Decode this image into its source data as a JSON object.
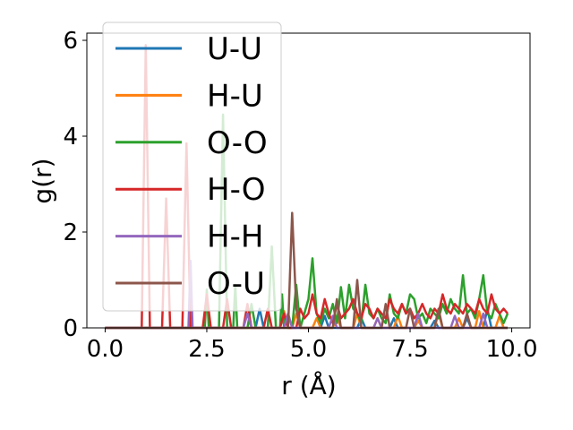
{
  "chart_data": {
    "type": "line",
    "title": "",
    "xlabel": "r (Å)",
    "ylabel": "g(r)",
    "xlim": [
      -0.45,
      10.45
    ],
    "ylim": [
      0,
      6.15
    ],
    "xticks": [
      "0.0",
      "2.5",
      "5.0",
      "7.5",
      "10.0"
    ],
    "xtick_values": [
      0,
      2.5,
      5,
      7.5,
      10
    ],
    "yticks": [
      "0",
      "2",
      "4",
      "6"
    ],
    "ytick_values": [
      0,
      2,
      4,
      6
    ],
    "legend_position": "upper-left",
    "grid": false,
    "series": [
      {
        "name": "U-U",
        "color": "#1f77b4",
        "x": [
          0,
          3.7,
          3.8,
          3.9,
          4.3,
          4.4,
          4.5,
          5.3,
          5.4,
          5.5,
          6.2,
          6.3,
          6.4,
          7.0,
          7.1,
          7.2,
          8.0,
          8.1,
          8.2,
          8.8,
          8.9,
          9.0,
          9.3,
          9.4,
          9.5,
          9.9
        ],
        "y": [
          0,
          0,
          0.4,
          0,
          0,
          0.3,
          0,
          0,
          0.25,
          0,
          0,
          0.2,
          0,
          0,
          0.2,
          0,
          0,
          0.15,
          0,
          0,
          0.2,
          0,
          0,
          0.4,
          0,
          0
        ]
      },
      {
        "name": "H-U",
        "color": "#ff7f0e",
        "x": [
          0,
          4.3,
          4.4,
          4.5,
          4.6,
          4.7,
          4.8,
          5.1,
          5.2,
          5.3,
          5.6,
          5.7,
          5.8,
          6.1,
          6.2,
          6.3,
          6.6,
          6.7,
          6.8,
          7.1,
          7.2,
          7.3,
          7.6,
          7.7,
          7.8,
          8.1,
          8.2,
          8.3,
          8.6,
          8.7,
          8.8,
          9.1,
          9.2,
          9.3,
          9.6,
          9.7,
          9.8,
          9.9
        ],
        "y": [
          0,
          0,
          0.35,
          0,
          0,
          0.3,
          0,
          0,
          0.2,
          0,
          0,
          0.25,
          0,
          0,
          0.3,
          0,
          0,
          0.2,
          0,
          0,
          0.25,
          0,
          0,
          0.15,
          0,
          0,
          0.3,
          0,
          0,
          0.2,
          0,
          0,
          0.35,
          0,
          0,
          0.25,
          0,
          0
        ]
      },
      {
        "name": "O-O",
        "color": "#2ca02c",
        "x": [
          0,
          2.45,
          2.5,
          2.55,
          2.8,
          2.9,
          3.0,
          3.15,
          3.2,
          3.25,
          3.5,
          3.6,
          3.7,
          4.0,
          4.1,
          4.2,
          4.3,
          4.35,
          4.4,
          4.6,
          4.7,
          4.8,
          5.0,
          5.1,
          5.2,
          5.3,
          5.4,
          5.5,
          5.6,
          5.7,
          5.8,
          5.9,
          6.0,
          6.1,
          6.2,
          6.3,
          6.4,
          6.5,
          6.6,
          6.7,
          6.8,
          6.9,
          7.0,
          7.1,
          7.2,
          7.3,
          7.4,
          7.5,
          7.6,
          7.7,
          7.8,
          7.9,
          8.0,
          8.1,
          8.2,
          8.3,
          8.4,
          8.5,
          8.6,
          8.7,
          8.8,
          8.9,
          9.0,
          9.1,
          9.2,
          9.3,
          9.4,
          9.5,
          9.6,
          9.7,
          9.8,
          9.9
        ],
        "y": [
          0,
          0,
          0.8,
          0,
          0,
          4.45,
          0,
          0,
          0.9,
          0,
          0,
          0.5,
          0,
          0,
          1.7,
          0,
          0,
          0.7,
          0,
          0,
          0.9,
          0,
          0.6,
          1.45,
          0.3,
          0.1,
          0.4,
          0.2,
          0.5,
          0.1,
          0.85,
          0.2,
          0.9,
          0.4,
          0.3,
          0.1,
          0.9,
          0.3,
          0.2,
          0.4,
          0.2,
          0.1,
          0.7,
          0.3,
          0.2,
          0.5,
          0.3,
          0.7,
          0.6,
          0.2,
          0.3,
          0.1,
          0.4,
          0.3,
          0.2,
          0.5,
          0.3,
          0.6,
          0.4,
          0.3,
          1.1,
          0.3,
          0.4,
          0.2,
          0.6,
          1.1,
          0.3,
          0.2,
          0.5,
          0.3,
          0.1,
          0.3
        ]
      },
      {
        "name": "H-O",
        "color": "#d62728",
        "x": [
          0,
          0.9,
          1.0,
          1.1,
          1.4,
          1.5,
          1.6,
          1.9,
          2.0,
          2.1,
          2.4,
          2.5,
          2.6,
          2.9,
          3.0,
          3.1,
          3.4,
          3.5,
          3.6,
          3.9,
          4.0,
          4.1,
          4.3,
          4.4,
          4.5,
          4.7,
          4.8,
          4.9,
          5.0,
          5.1,
          5.2,
          5.3,
          5.4,
          5.5,
          5.6,
          5.7,
          5.8,
          5.9,
          6.0,
          6.1,
          6.2,
          6.3,
          6.4,
          6.5,
          6.6,
          6.7,
          6.8,
          6.9,
          7.0,
          7.1,
          7.2,
          7.3,
          7.4,
          7.5,
          7.6,
          7.7,
          7.8,
          7.9,
          8.0,
          8.1,
          8.2,
          8.3,
          8.4,
          8.5,
          8.6,
          8.7,
          8.8,
          8.9,
          9.0,
          9.1,
          9.2,
          9.3,
          9.4,
          9.5,
          9.6,
          9.7,
          9.8,
          9.9
        ],
        "y": [
          0,
          0,
          5.9,
          0,
          0,
          2.7,
          0,
          0,
          3.85,
          0,
          0,
          0.7,
          0,
          0,
          0.6,
          0,
          0,
          0.5,
          0,
          0,
          0.4,
          0,
          0,
          0.3,
          0,
          0,
          0.4,
          0.2,
          0.3,
          0.7,
          0.3,
          0.2,
          0.6,
          0.3,
          0.1,
          0.5,
          0.2,
          0.3,
          0.4,
          0.6,
          0.3,
          0.2,
          0.5,
          0.4,
          0.2,
          0.4,
          0.3,
          0.2,
          0.6,
          0.4,
          0.3,
          0.5,
          0.3,
          0.4,
          0.2,
          0.3,
          0.5,
          0.3,
          0.2,
          0.4,
          0.3,
          0.7,
          0.4,
          0.3,
          0.5,
          0.4,
          0.3,
          0.5,
          0.4,
          0.3,
          0.6,
          0.4,
          0.3,
          0.7,
          0.4,
          0.3,
          0.4,
          0.3
        ]
      },
      {
        "name": "H-H",
        "color": "#9467bd",
        "x": [
          0,
          2.05,
          2.1,
          2.15,
          3.4,
          3.5,
          3.6,
          4.4,
          4.5,
          4.6,
          5.5,
          5.6,
          5.7,
          6.6,
          6.7,
          6.8,
          7.6,
          7.7,
          7.8,
          8.5,
          8.6,
          8.7,
          9.2,
          9.3,
          9.4,
          9.9
        ],
        "y": [
          0,
          0,
          1.4,
          0,
          0,
          0.3,
          0,
          0,
          0.3,
          0,
          0,
          0.25,
          0,
          0,
          0.2,
          0,
          0,
          0.3,
          0,
          0,
          0.25,
          0,
          0,
          0.3,
          0,
          0
        ]
      },
      {
        "name": "O-U",
        "color": "#8c564b",
        "x": [
          0,
          4.5,
          4.6,
          4.7,
          4.8,
          5.6,
          5.7,
          5.8,
          6.1,
          6.2,
          6.3,
          6.8,
          6.9,
          7.0,
          7.4,
          7.5,
          7.6,
          8.1,
          8.2,
          8.3,
          8.8,
          8.9,
          9.0,
          9.9
        ],
        "y": [
          0,
          0,
          2.4,
          0.4,
          0,
          0,
          0.6,
          0,
          0,
          1.0,
          0,
          0,
          0.5,
          0,
          0,
          0.4,
          0,
          0,
          0.4,
          0,
          0,
          0.3,
          0,
          0
        ]
      }
    ]
  }
}
